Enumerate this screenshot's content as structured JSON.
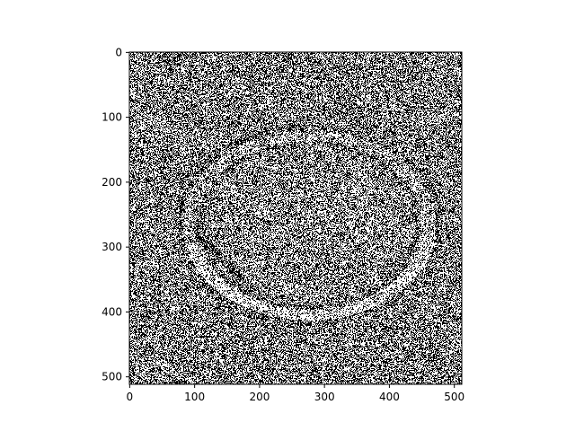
{
  "chart_data": {
    "type": "heatmap",
    "colormap": "binary",
    "palette": [
      "#000000",
      "#ffffff"
    ],
    "content": "binary noise image with a faint ellipse outline",
    "image_size": [
      512,
      512
    ],
    "xlim": [
      -0.5,
      511.5
    ],
    "ylim": [
      511.5,
      -0.5
    ],
    "x_ticks": [
      0,
      100,
      200,
      300,
      400,
      500
    ],
    "y_ticks": [
      0,
      100,
      200,
      300,
      400,
      500
    ],
    "x_tick_labels": [
      "0",
      "100",
      "200",
      "300",
      "400",
      "500"
    ],
    "y_tick_labels": [
      "0",
      "100",
      "200",
      "300",
      "400",
      "500"
    ],
    "title": "",
    "xlabel": "",
    "ylabel": ""
  }
}
